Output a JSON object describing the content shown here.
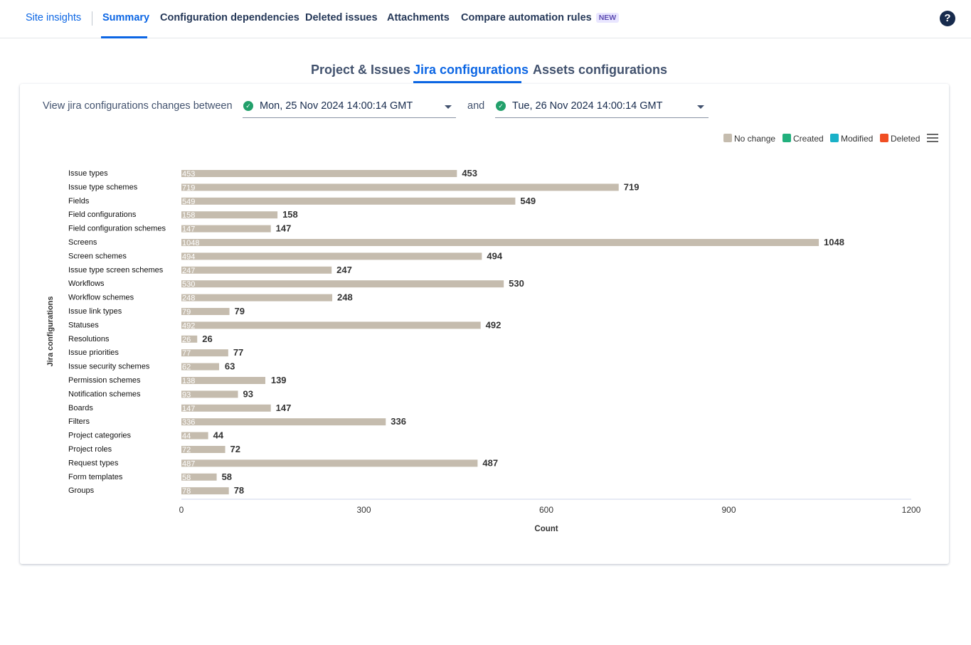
{
  "nav": {
    "items": [
      {
        "label": "Site insights"
      },
      {
        "label": "Summary"
      },
      {
        "label": "Configuration dependencies"
      },
      {
        "label": "Deleted issues"
      },
      {
        "label": "Attachments"
      },
      {
        "label": "Compare automation rules"
      }
    ],
    "new_badge": "NEW",
    "help_label": "?"
  },
  "subtabs": [
    {
      "label": "Project & Issues"
    },
    {
      "label": "Jira configurations"
    },
    {
      "label": "Assets configurations"
    }
  ],
  "filter": {
    "label": "View jira configurations changes between",
    "from_date": "Mon, 25 Nov 2024 14:00:14 GMT",
    "and_label": "and",
    "to_date": "Tue, 26 Nov 2024 14:00:14 GMT"
  },
  "legend": [
    {
      "label": "No change",
      "color": "#c5bcae"
    },
    {
      "label": "Created",
      "color": "#22b07d"
    },
    {
      "label": "Modified",
      "color": "#1ab1c8"
    },
    {
      "label": "Deleted",
      "color": "#f04e23"
    }
  ],
  "chart_data": {
    "type": "bar",
    "orientation": "horizontal",
    "ylabel": "Jira configurations",
    "xlabel": "Count",
    "xlim": [
      0,
      1200
    ],
    "xticks": [
      0,
      300,
      600,
      900,
      1200
    ],
    "categories": [
      "Issue types",
      "Issue type schemes",
      "Fields",
      "Field configurations",
      "Field configuration schemes",
      "Screens",
      "Screen schemes",
      "Issue type screen schemes",
      "Workflows",
      "Workflow schemes",
      "Issue link types",
      "Statuses",
      "Resolutions",
      "Issue priorities",
      "Issue security schemes",
      "Permission schemes",
      "Notification schemes",
      "Boards",
      "Filters",
      "Project categories",
      "Project roles",
      "Request types",
      "Form templates",
      "Groups"
    ],
    "series": [
      {
        "name": "No change",
        "color": "#c5bcae",
        "values": [
          453,
          719,
          549,
          158,
          147,
          1048,
          494,
          247,
          530,
          248,
          79,
          492,
          26,
          77,
          62,
          138,
          93,
          147,
          336,
          44,
          72,
          487,
          58,
          78
        ]
      }
    ],
    "totals": [
      453,
      719,
      549,
      158,
      147,
      1048,
      494,
      247,
      530,
      248,
      79,
      492,
      26,
      77,
      63,
      139,
      93,
      147,
      336,
      44,
      72,
      487,
      58,
      78
    ],
    "legend_position": "top-right",
    "grid": false
  }
}
